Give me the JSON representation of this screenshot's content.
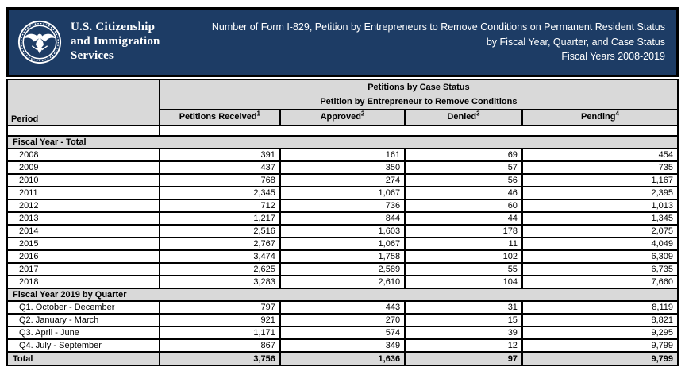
{
  "colors": {
    "banner_navy": "#1d3c65",
    "header_gray": "#d9d9d9",
    "border_black": "#000000",
    "text_white": "#ffffff"
  },
  "banner": {
    "logo_line1": "U.S. Citizenship",
    "logo_line2": "and Immigration",
    "logo_line3": "Services",
    "seal_icon": "dhs-seal-icon",
    "title_line1": "Number of Form I-829, Petition by Entrepreneurs to Remove Conditions on Permanent Resident Status",
    "title_line2": "by Fiscal Year, Quarter, and Case Status",
    "title_line3": "Fiscal Years 2008-2019"
  },
  "table": {
    "group_header1": "Petitions by Case Status",
    "group_header2": "Petition by Entrepreneur to Remove Conditions",
    "columns": [
      {
        "label": "Period",
        "sup": ""
      },
      {
        "label": "Petitions Received",
        "sup": "1"
      },
      {
        "label": "Approved",
        "sup": "2"
      },
      {
        "label": "Denied",
        "sup": "3"
      },
      {
        "label": "Pending",
        "sup": "4"
      }
    ],
    "sections": [
      {
        "title": "Fiscal Year - Total",
        "rows": [
          {
            "period": "2008",
            "received": "391",
            "approved": "161",
            "denied": "69",
            "pending": "454"
          },
          {
            "period": "2009",
            "received": "437",
            "approved": "350",
            "denied": "57",
            "pending": "735"
          },
          {
            "period": "2010",
            "received": "768",
            "approved": "274",
            "denied": "56",
            "pending": "1,167"
          },
          {
            "period": "2011",
            "received": "2,345",
            "approved": "1,067",
            "denied": "46",
            "pending": "2,395"
          },
          {
            "period": "2012",
            "received": "712",
            "approved": "736",
            "denied": "60",
            "pending": "1,013"
          },
          {
            "period": "2013",
            "received": "1,217",
            "approved": "844",
            "denied": "44",
            "pending": "1,345"
          },
          {
            "period": "2014",
            "received": "2,516",
            "approved": "1,603",
            "denied": "178",
            "pending": "2,075"
          },
          {
            "period": "2015",
            "received": "2,767",
            "approved": "1,067",
            "denied": "11",
            "pending": "4,049"
          },
          {
            "period": "2016",
            "received": "3,474",
            "approved": "1,758",
            "denied": "102",
            "pending": "6,309"
          },
          {
            "period": "2017",
            "received": "2,625",
            "approved": "2,589",
            "denied": "55",
            "pending": "6,735"
          },
          {
            "period": "2018",
            "received": "3,283",
            "approved": "2,610",
            "denied": "104",
            "pending": "7,660"
          }
        ]
      },
      {
        "title": "Fiscal Year 2019 by Quarter",
        "rows": [
          {
            "period": "Q1. October - December",
            "received": "797",
            "approved": "443",
            "denied": "31",
            "pending": "8,119"
          },
          {
            "period": "Q2. January - March",
            "received": "921",
            "approved": "270",
            "denied": "15",
            "pending": "8,821"
          },
          {
            "period": "Q3. April - June",
            "received": "1,171",
            "approved": "574",
            "denied": "39",
            "pending": "9,295"
          },
          {
            "period": "Q4. July - September",
            "received": "867",
            "approved": "349",
            "denied": "12",
            "pending": "9,799"
          }
        ]
      }
    ],
    "total_row": {
      "period": "Total",
      "received": "3,756",
      "approved": "1,636",
      "denied": "97",
      "pending": "9,799"
    }
  }
}
